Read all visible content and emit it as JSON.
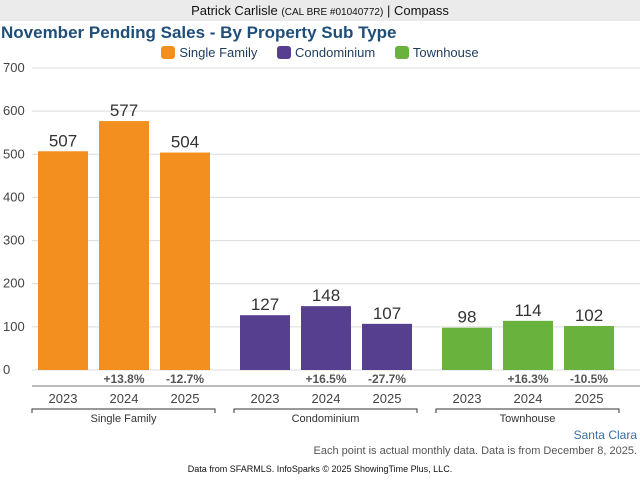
{
  "header": {
    "agent_name": "Patrick Carlisle",
    "license": "(CAL BRE #01040772)",
    "separator": "|",
    "brokerage": "Compass"
  },
  "footer": {
    "region": "Santa Clara",
    "note": "Each point is actual monthly data. Data is from December 8, 2025.",
    "credit": "Data from SFARMLS. InfoSparks © 2025 ShowingTime Plus, LLC."
  },
  "chart_data": {
    "type": "bar",
    "title": "November Pending Sales - By Property Sub Type",
    "xlabel": "",
    "ylabel": "",
    "ylim": [
      0,
      700
    ],
    "yticks": [
      0,
      100,
      200,
      300,
      400,
      500,
      600,
      700
    ],
    "grid": true,
    "legend_position": "top-center",
    "legend": [
      {
        "name": "Single Family",
        "color": "#f28f1f"
      },
      {
        "name": "Condominium",
        "color": "#563f8f"
      },
      {
        "name": "Townhouse",
        "color": "#6ab23e"
      }
    ],
    "groups": [
      {
        "name": "Single Family",
        "color": "#f28f1f",
        "categories": [
          "2023",
          "2024",
          "2025"
        ],
        "values": [
          507,
          577,
          504
        ],
        "changes": [
          "",
          "+13.8%",
          "-12.7%"
        ]
      },
      {
        "name": "Condominium",
        "color": "#563f8f",
        "categories": [
          "2023",
          "2024",
          "2025"
        ],
        "values": [
          127,
          148,
          107
        ],
        "changes": [
          "",
          "+16.5%",
          "-27.7%"
        ]
      },
      {
        "name": "Townhouse",
        "color": "#6ab23e",
        "categories": [
          "2023",
          "2024",
          "2025"
        ],
        "values": [
          98,
          114,
          102
        ],
        "changes": [
          "",
          "+16.3%",
          "-10.5%"
        ]
      }
    ]
  }
}
